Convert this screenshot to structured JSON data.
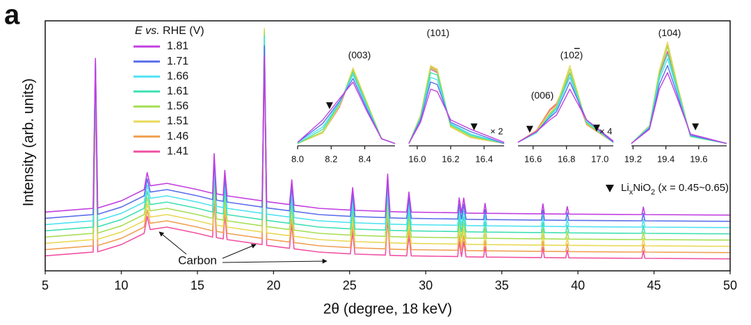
{
  "chart_data": [
    {
      "type": "line",
      "panel_label": "a",
      "xlabel": "2θ  (degree, 18 keV)",
      "ylabel": "Intensity (arb. units)",
      "legend_title": [
        {
          "text": "E",
          "italic": true
        },
        {
          "text": " vs.",
          "italic": true
        },
        {
          "text": " RHE (V)"
        }
      ],
      "carbon_label": "Carbon",
      "phase_label": [
        {
          "text": "Li"
        },
        {
          "text": "x",
          "sub": true
        },
        {
          "text": "NiO"
        },
        {
          "text": "2",
          "sub": true
        },
        {
          "text": " (x = 0.45~0.65)"
        }
      ],
      "xlim": [
        5,
        50
      ],
      "xticks": [
        5,
        10,
        15,
        20,
        25,
        30,
        35,
        40,
        45,
        50
      ],
      "ylim": [
        0,
        100
      ],
      "x": [
        5,
        8.15,
        8.3,
        8.45,
        10,
        11.5,
        11.7,
        11.9,
        13,
        15,
        16.0,
        16.1,
        16.25,
        16.7,
        16.8,
        16.95,
        19.25,
        19.4,
        19.55,
        21.05,
        21.2,
        21.35,
        23,
        25.05,
        25.2,
        25.35,
        27.35,
        27.5,
        27.65,
        28.75,
        28.9,
        29.05,
        32.1,
        32.2,
        32.35,
        32.5,
        32.65,
        33.8,
        33.9,
        34.0,
        37.6,
        37.7,
        37.8,
        39.2,
        39.3,
        39.4,
        44.2,
        44.3,
        44.4,
        50
      ],
      "series": [
        {
          "name": "1.81",
          "color": "#c23fe0",
          "values": [
            23.5,
            25,
            85,
            25.1,
            28,
            32.5,
            39.3,
            34,
            35,
            32.5,
            31,
            46.9,
            30.8,
            30.3,
            40.2,
            30,
            28,
            86,
            27.7,
            26.5,
            36.4,
            26.3,
            25,
            24.3,
            33.3,
            24.2,
            23.8,
            38.7,
            23.7,
            23.5,
            31.5,
            23.5,
            23.2,
            29.2,
            23.2,
            29.1,
            23.1,
            23,
            27,
            23,
            22.8,
            26.8,
            22.8,
            22.7,
            25.7,
            22.7,
            22.5,
            25.5,
            22.5,
            22.3
          ]
        },
        {
          "name": "1.71",
          "color": "#5b6fea",
          "values": [
            21,
            22.5,
            84,
            22.6,
            25.5,
            30,
            36.8,
            31.5,
            32.5,
            30,
            28.5,
            44.4,
            28.3,
            27.8,
            37.7,
            27.5,
            25.5,
            90,
            25.2,
            24,
            33.9,
            23.8,
            22.5,
            21.8,
            30.8,
            21.7,
            21.3,
            36.2,
            21.2,
            21,
            29,
            21,
            20.7,
            26.7,
            20.7,
            26.6,
            20.6,
            20.5,
            24.5,
            20.5,
            20.3,
            24.3,
            20.3,
            20.2,
            23.2,
            20.2,
            20,
            23,
            20,
            19.8
          ]
        },
        {
          "name": "1.66",
          "color": "#4fe2f2",
          "values": [
            18.5,
            20,
            83,
            20.1,
            23,
            27.5,
            34.3,
            29,
            30,
            27.5,
            26,
            41.9,
            25.8,
            25.3,
            35.2,
            25,
            23,
            93,
            22.7,
            21.5,
            31.4,
            21.3,
            20,
            19.3,
            28.3,
            19.2,
            18.8,
            33.7,
            18.7,
            18.5,
            26.5,
            18.5,
            18.2,
            24.2,
            18.2,
            24.1,
            18.1,
            18,
            22,
            18,
            17.8,
            21.8,
            17.8,
            17.7,
            20.7,
            17.7,
            17.5,
            20.5,
            17.5,
            17.3
          ]
        },
        {
          "name": "1.61",
          "color": "#3fe0b2",
          "values": [
            16,
            17.5,
            80,
            17.6,
            20.5,
            25,
            31.8,
            26.5,
            27.5,
            25,
            23.5,
            39.4,
            23.3,
            22.8,
            32.7,
            22.5,
            20.5,
            94,
            20.2,
            19,
            28.9,
            18.8,
            17.5,
            16.8,
            25.8,
            16.7,
            16.3,
            31.2,
            16.2,
            16,
            24,
            16,
            15.7,
            21.7,
            15.7,
            21.6,
            15.6,
            15.5,
            19.5,
            15.5,
            15.3,
            19.3,
            15.3,
            15.2,
            18.2,
            15.2,
            15,
            18,
            15,
            14.8
          ]
        },
        {
          "name": "1.56",
          "color": "#a6df55",
          "values": [
            13.5,
            15,
            79,
            15.1,
            18,
            22.5,
            29.3,
            24,
            25,
            22.5,
            21,
            36.9,
            20.8,
            20.3,
            30.2,
            20,
            18,
            96,
            17.7,
            16.5,
            26.4,
            16.3,
            15,
            14.3,
            23.3,
            14.2,
            13.8,
            28.7,
            13.7,
            13.5,
            21.5,
            13.5,
            13.2,
            19.2,
            13.2,
            19.1,
            13.1,
            13,
            17,
            13,
            12.8,
            16.8,
            12.8,
            12.7,
            15.7,
            12.7,
            12.5,
            15.5,
            12.5,
            12.3
          ]
        },
        {
          "name": "1.51",
          "color": "#e9d856",
          "values": [
            11,
            12.5,
            78,
            12.6,
            15.5,
            20,
            26.8,
            21.5,
            22.5,
            20,
            18.5,
            34.4,
            18.3,
            17.8,
            27.7,
            17.5,
            15.5,
            97,
            15.2,
            14,
            23.9,
            13.8,
            12.5,
            11.8,
            20.8,
            11.7,
            11.3,
            26.2,
            11.2,
            11,
            19,
            11,
            10.7,
            16.7,
            10.7,
            16.6,
            10.6,
            10.5,
            14.5,
            10.5,
            10.3,
            14.3,
            10.3,
            10.2,
            13.2,
            10.2,
            10,
            13,
            10,
            9.8
          ]
        },
        {
          "name": "1.46",
          "color": "#f0a052",
          "values": [
            8.5,
            10,
            76,
            10.1,
            13,
            17.5,
            24.3,
            19,
            20,
            17.5,
            16,
            31.9,
            15.8,
            15.3,
            25.2,
            15,
            13,
            93,
            12.7,
            11.5,
            21.4,
            11.3,
            10,
            9.3,
            18.3,
            9.2,
            8.8,
            23.7,
            8.7,
            8.5,
            16.5,
            8.5,
            8.2,
            14.2,
            8.2,
            14.1,
            8.1,
            8,
            12,
            8,
            7.8,
            11.8,
            7.8,
            7.7,
            10.7,
            7.7,
            7.5,
            10.5,
            7.5,
            7.3
          ]
        },
        {
          "name": "1.41",
          "color": "#f052a2",
          "values": [
            6,
            7.5,
            73,
            7.6,
            10.5,
            15,
            21.8,
            16.5,
            17.5,
            15,
            13.5,
            29.4,
            13.3,
            12.8,
            22.7,
            12.5,
            10.5,
            90,
            10.2,
            9,
            18.9,
            8.8,
            7.5,
            6.8,
            15.8,
            6.7,
            6.3,
            21.2,
            6.2,
            6,
            14,
            6,
            5.7,
            11.7,
            5.7,
            11.6,
            5.6,
            5.5,
            9.5,
            5.5,
            5.3,
            9.3,
            5.3,
            5.2,
            8.2,
            5.2,
            5,
            8,
            5,
            4.8
          ]
        }
      ]
    },
    {
      "type": "line",
      "peak_labels": [
        [
          {
            "text": "(003)"
          }
        ]
      ],
      "xlim": [
        8.0,
        8.58
      ],
      "xticks": [
        {
          "value": 8,
          "label": "8.0"
        },
        8.2,
        8.4
      ],
      "ylim": [
        0,
        100
      ],
      "markers": [
        {
          "x": 8.19,
          "y": 34
        }
      ],
      "x": [
        8.0,
        8.15,
        8.25,
        8.33,
        8.41,
        8.5,
        8.58
      ],
      "series": [
        {
          "color": "#c23fe0",
          "values": [
            3,
            22,
            40,
            54,
            30,
            6,
            2
          ]
        },
        {
          "color": "#5b6fea",
          "values": [
            3,
            19,
            38,
            57,
            32,
            6,
            2
          ]
        },
        {
          "color": "#4fe2f2",
          "values": [
            3,
            16,
            37,
            60,
            34,
            6,
            2
          ]
        },
        {
          "color": "#3fe0b2",
          "values": [
            2,
            14,
            36,
            62,
            35,
            6,
            2
          ]
        },
        {
          "color": "#a6df55",
          "values": [
            2,
            12,
            35,
            64,
            37,
            6,
            2
          ]
        },
        {
          "color": "#e9d856",
          "values": [
            2,
            11,
            34,
            66,
            38,
            6,
            2
          ]
        },
        {
          "color": "#f0a052",
          "values": [
            2,
            11,
            34,
            65,
            37,
            6,
            2
          ]
        },
        {
          "color": "#f052a2",
          "values": [
            2,
            11,
            33,
            63,
            36,
            6,
            2
          ]
        }
      ]
    },
    {
      "type": "line",
      "peak_labels": [
        [
          {
            "text": "(101)"
          }
        ]
      ],
      "multiplier": "× 2",
      "xlim": [
        15.95,
        16.52
      ],
      "xticks": [
        {
          "value": 16,
          "label": "16.0"
        },
        16.2,
        16.4
      ],
      "ylim": [
        0,
        100
      ],
      "markers": [
        {
          "x": 16.34,
          "y": 16
        }
      ],
      "x": [
        15.95,
        16.02,
        16.08,
        16.12,
        16.2,
        16.32,
        16.52
      ],
      "series": [
        {
          "color": "#c23fe0",
          "values": [
            2,
            20,
            48,
            46,
            22,
            14,
            3
          ]
        },
        {
          "color": "#5b6fea",
          "values": [
            2,
            22,
            54,
            52,
            20,
            12,
            2
          ]
        },
        {
          "color": "#4fe2f2",
          "values": [
            2,
            23,
            58,
            56,
            19,
            10,
            2
          ]
        },
        {
          "color": "#3fe0b2",
          "values": [
            2,
            24,
            62,
            60,
            18,
            9,
            2
          ]
        },
        {
          "color": "#a6df55",
          "values": [
            2,
            25,
            66,
            63,
            17,
            8,
            2
          ]
        },
        {
          "color": "#e9d856",
          "values": [
            2,
            26,
            68,
            65,
            16,
            7,
            2
          ]
        },
        {
          "color": "#f0a052",
          "values": [
            2,
            26,
            67,
            64,
            16,
            7,
            2
          ]
        },
        {
          "color": "#f052a2",
          "values": [
            2,
            25,
            65,
            62,
            16,
            7,
            2
          ]
        }
      ]
    },
    {
      "type": "line",
      "peak_labels": [
        [
          {
            "text": "(006)"
          }
        ],
        [
          {
            "text": "(10"
          },
          {
            "text": "2",
            "overline": true
          },
          {
            "text": ")"
          }
        ]
      ],
      "multiplier": "× 4",
      "xlim": [
        16.51,
        17.08
      ],
      "xticks": [
        16.6,
        16.8,
        {
          "value": 17,
          "label": "17.0"
        }
      ],
      "ylim": [
        0,
        100
      ],
      "markers": [
        {
          "x": 16.58,
          "y": 14
        },
        {
          "x": 16.98,
          "y": 15
        }
      ],
      "x": [
        16.51,
        16.62,
        16.7,
        16.74,
        16.82,
        16.92,
        17.08
      ],
      "series": [
        {
          "color": "#c23fe0",
          "values": [
            3,
            12,
            22,
            26,
            48,
            22,
            4
          ]
        },
        {
          "color": "#5b6fea",
          "values": [
            3,
            12,
            24,
            29,
            54,
            22,
            3
          ]
        },
        {
          "color": "#4fe2f2",
          "values": [
            3,
            11,
            25,
            31,
            58,
            21,
            3
          ]
        },
        {
          "color": "#3fe0b2",
          "values": [
            3,
            11,
            26,
            32,
            61,
            20,
            3
          ]
        },
        {
          "color": "#a6df55",
          "values": [
            3,
            11,
            27,
            33,
            65,
            19,
            3
          ]
        },
        {
          "color": "#e9d856",
          "values": [
            3,
            12,
            28,
            34,
            68,
            19,
            3
          ]
        },
        {
          "color": "#f0a052",
          "values": [
            3,
            13,
            31,
            36,
            62,
            18,
            3
          ]
        },
        {
          "color": "#f052a2",
          "values": [
            3,
            13,
            30,
            35,
            58,
            18,
            3
          ]
        }
      ]
    },
    {
      "type": "line",
      "peak_labels": [
        [
          {
            "text": "(104)"
          }
        ]
      ],
      "xlim": [
        19.19,
        19.77
      ],
      "xticks": [
        19.2,
        19.4,
        19.6
      ],
      "ylim": [
        0,
        100
      ],
      "markers": [
        {
          "x": 19.58,
          "y": 16
        }
      ],
      "x": [
        19.19,
        19.3,
        19.36,
        19.41,
        19.47,
        19.55,
        19.77
      ],
      "series": [
        {
          "color": "#c23fe0",
          "values": [
            2,
            14,
            48,
            62,
            40,
            10,
            2
          ]
        },
        {
          "color": "#5b6fea",
          "values": [
            2,
            15,
            52,
            68,
            43,
            9,
            2
          ]
        },
        {
          "color": "#4fe2f2",
          "values": [
            2,
            16,
            56,
            74,
            46,
            9,
            2
          ]
        },
        {
          "color": "#3fe0b2",
          "values": [
            2,
            16,
            59,
            78,
            48,
            8,
            2
          ]
        },
        {
          "color": "#a6df55",
          "values": [
            2,
            17,
            62,
            84,
            50,
            8,
            2
          ]
        },
        {
          "color": "#e9d856",
          "values": [
            2,
            17,
            64,
            88,
            52,
            8,
            2
          ]
        },
        {
          "color": "#f0a052",
          "values": [
            2,
            17,
            62,
            85,
            50,
            8,
            2
          ]
        },
        {
          "color": "#f052a2",
          "values": [
            2,
            16,
            60,
            80,
            48,
            8,
            2
          ]
        }
      ]
    }
  ]
}
